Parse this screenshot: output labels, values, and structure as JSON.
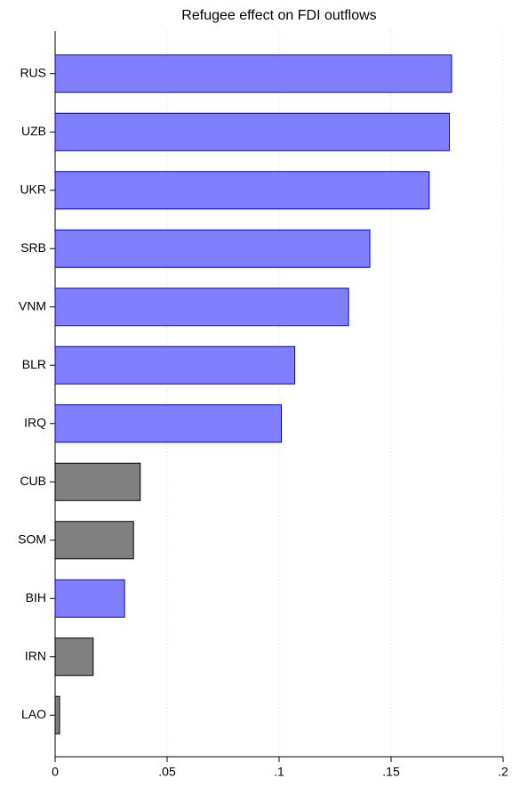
{
  "chart_data": {
    "type": "barh",
    "title": "Refugee effect on FDI outflows",
    "categories": [
      "RUS",
      "UZB",
      "UKR",
      "SRB",
      "VNM",
      "BLR",
      "IRQ",
      "CUB",
      "SOM",
      "BIH",
      "IRN",
      "LAO"
    ],
    "values": [
      0.177,
      0.176,
      0.167,
      0.1405,
      0.131,
      0.107,
      0.101,
      0.038,
      0.035,
      0.031,
      0.017,
      0.002
    ],
    "colors": [
      "#8080ff",
      "#8080ff",
      "#8080ff",
      "#8080ff",
      "#8080ff",
      "#8080ff",
      "#8080ff",
      "#808080",
      "#808080",
      "#8080ff",
      "#808080",
      "#808080"
    ],
    "xlim": [
      0,
      0.2
    ],
    "xticks": [
      0,
      {
        "value": 0.05,
        "label": ".05"
      },
      {
        "value": 0.1,
        "label": ".1"
      },
      {
        "value": 0.15,
        "label": ".15"
      },
      {
        "value": 0.2,
        "label": ".2"
      }
    ],
    "grid": true
  }
}
